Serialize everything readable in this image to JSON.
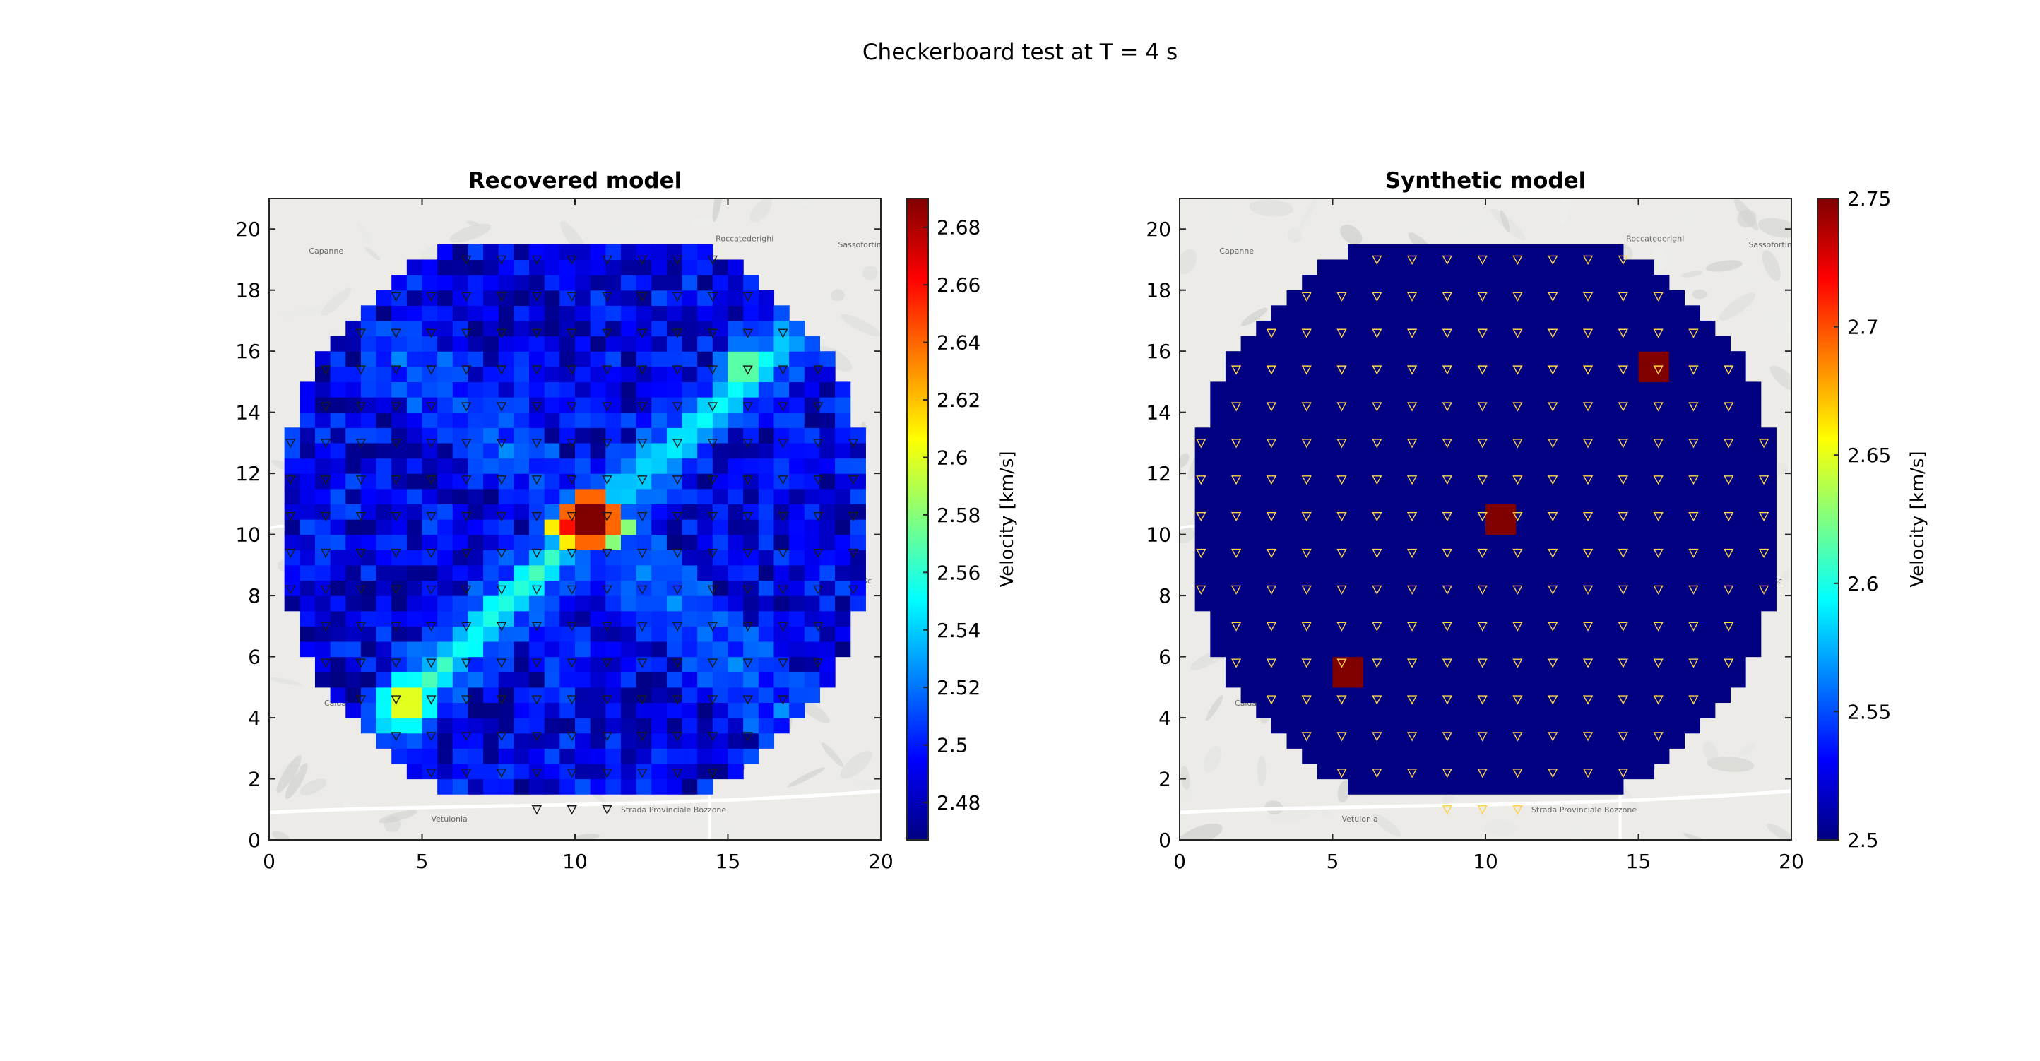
{
  "figure": {
    "title": "Checkerboard test at T = 4 s"
  },
  "chart_data": [
    {
      "type": "heatmap",
      "title": "Recovered model",
      "xlabel": "",
      "ylabel": "",
      "xlim": [
        0,
        20
      ],
      "ylim": [
        0,
        21
      ],
      "xticks": [
        0,
        5,
        10,
        15,
        20
      ],
      "yticks": [
        0,
        2,
        4,
        6,
        8,
        10,
        12,
        14,
        16,
        18,
        20
      ],
      "grid": false,
      "colorbar": {
        "label": "Velocity [km/s]",
        "colormap": "jet",
        "range": [
          2.467,
          2.69
        ],
        "ticks": [
          2.48,
          2.5,
          2.52,
          2.54,
          2.56,
          2.58,
          2.6,
          2.62,
          2.64,
          2.66,
          2.68
        ]
      },
      "domain": {
        "shape": "disk",
        "center": [
          10,
          10.5
        ],
        "radius": 10
      },
      "background_value": 2.5,
      "anomalies": [
        {
          "x": 10.5,
          "y": 10.5,
          "value": 2.69,
          "note": "central peak"
        },
        {
          "x": 10.0,
          "y": 10.2,
          "value": 2.66
        },
        {
          "x": 11.0,
          "y": 10.2,
          "value": 2.63
        },
        {
          "x": 4.5,
          "y": 4.5,
          "value": 2.6
        },
        {
          "x": 15.5,
          "y": 15.5,
          "value": 2.57
        }
      ],
      "streaks": [
        {
          "from": [
            4,
            4
          ],
          "to": [
            10.5,
            10.5
          ],
          "value": 2.56
        },
        {
          "from": [
            10.5,
            10.5
          ],
          "to": [
            17,
            16.3
          ],
          "value": 2.55
        },
        {
          "from": [
            4,
            16
          ],
          "to": [
            10.5,
            10.5
          ],
          "value": 2.52
        },
        {
          "from": [
            10.5,
            10.5
          ],
          "to": [
            17,
            4
          ],
          "value": 2.52
        }
      ],
      "stations": "triangle markers on a regular grid inside the disk",
      "basemap_labels": [
        "Capanne",
        "Roccatederighi",
        "Sassofortino",
        "Calda",
        "Vetulonia",
        "Strada Provinciale Bozzone",
        "agni",
        "Sc"
      ]
    },
    {
      "type": "heatmap",
      "title": "Synthetic model",
      "xlabel": "",
      "ylabel": "",
      "xlim": [
        0,
        20
      ],
      "ylim": [
        0,
        21
      ],
      "xticks": [
        0,
        5,
        10,
        15,
        20
      ],
      "yticks": [
        0,
        2,
        4,
        6,
        8,
        10,
        12,
        14,
        16,
        18,
        20
      ],
      "grid": false,
      "colorbar": {
        "label": "Velocity [km/s]",
        "colormap": "jet",
        "range": [
          2.5,
          2.75
        ],
        "ticks": [
          2.5,
          2.55,
          2.6,
          2.65,
          2.7,
          2.75
        ]
      },
      "domain": {
        "shape": "disk",
        "center": [
          10,
          10.5
        ],
        "radius": 10
      },
      "background_value": 2.5,
      "anomalies": [
        {
          "x": 5.5,
          "y": 5.5,
          "size": 1.5,
          "value": 2.75
        },
        {
          "x": 10.5,
          "y": 10.5,
          "size": 1.5,
          "value": 2.75
        },
        {
          "x": 15.5,
          "y": 15.5,
          "size": 1.5,
          "value": 2.75
        }
      ],
      "stations": "triangle markers on a regular grid inside the disk",
      "basemap_labels": [
        "Capanne",
        "Roccatederighi",
        "Sassofortino",
        "Calda",
        "Vetulonia",
        "Strada Provinciale Bozzone",
        "agni",
        "Sc"
      ]
    }
  ]
}
